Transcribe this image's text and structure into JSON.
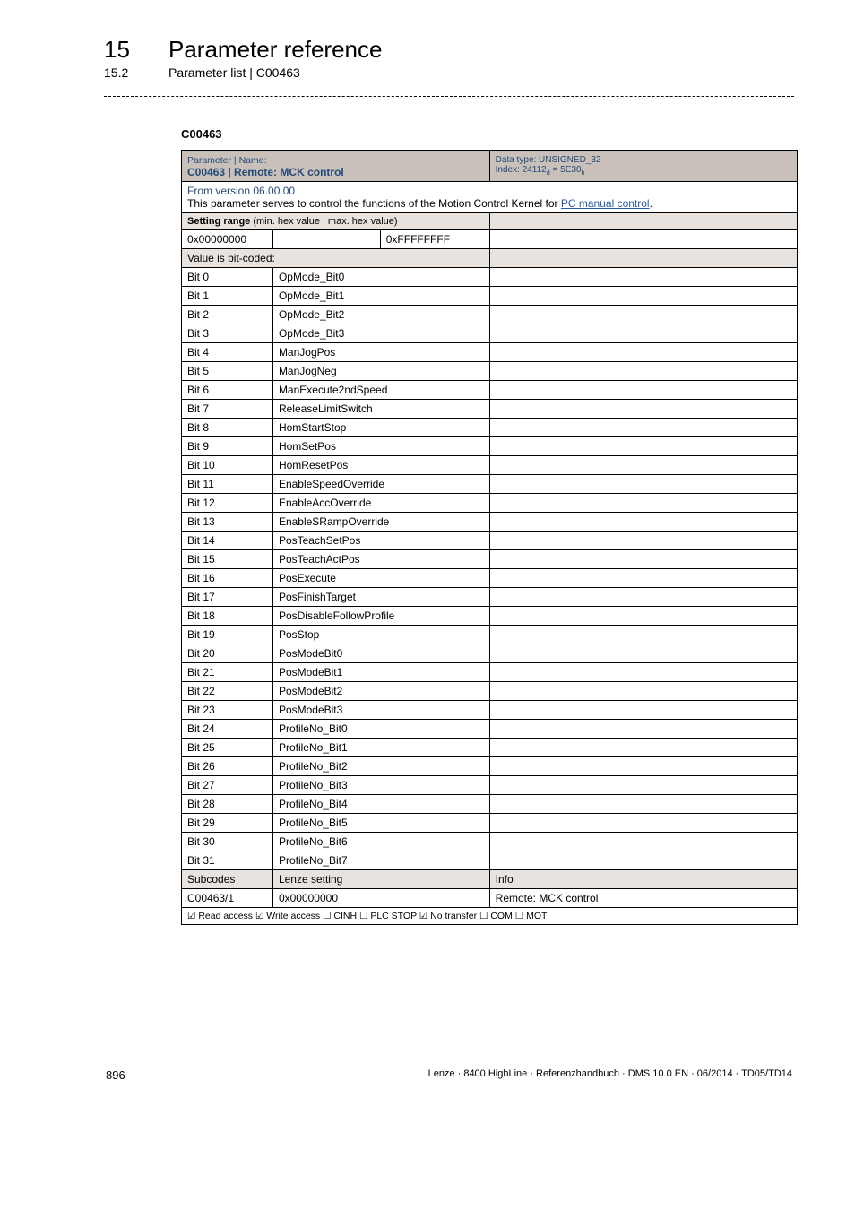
{
  "header": {
    "chapter_num": "15",
    "chapter_title": "Parameter reference",
    "section_num": "15.2",
    "section_title": "Parameter list | C00463"
  },
  "param_code": "C00463",
  "colors": {
    "header_band": "#c9c0b9",
    "gray_band": "#e8e3de",
    "link": "#2a5aa5",
    "header_text": "#244a7a"
  },
  "table": {
    "header": {
      "pn_label": "Parameter | Name:",
      "title": "C00463 | Remote: MCK control",
      "dtype": "Data type: UNSIGNED_32",
      "index": "Index: 24112",
      "index_sub1": "d",
      "index_eq": " = 5E30",
      "index_sub2": "h"
    },
    "version": "From version 06.00.00",
    "desc_pre": "This parameter serves to control the functions of the Motion Control Kernel for ",
    "desc_link": "PC manual control",
    "desc_post": ".",
    "setting_range_label": "Setting range",
    "setting_range_suffix": " (min. hex value | max. hex value)",
    "range_min": "0x00000000",
    "range_max": "0xFFFFFFFF",
    "bitcoded_label": "Value is bit-coded:",
    "bits": [
      {
        "n": "Bit 0",
        "v": "OpMode_Bit0"
      },
      {
        "n": "Bit 1",
        "v": "OpMode_Bit1"
      },
      {
        "n": "Bit 2",
        "v": "OpMode_Bit2"
      },
      {
        "n": "Bit 3",
        "v": "OpMode_Bit3"
      },
      {
        "n": "Bit 4",
        "v": "ManJogPos"
      },
      {
        "n": "Bit 5",
        "v": "ManJogNeg"
      },
      {
        "n": "Bit 6",
        "v": "ManExecute2ndSpeed"
      },
      {
        "n": "Bit 7",
        "v": "ReleaseLimitSwitch"
      },
      {
        "n": "Bit 8",
        "v": "HomStartStop"
      },
      {
        "n": "Bit 9",
        "v": "HomSetPos"
      },
      {
        "n": "Bit 10",
        "v": "HomResetPos"
      },
      {
        "n": "Bit 11",
        "v": "EnableSpeedOverride"
      },
      {
        "n": "Bit 12",
        "v": "EnableAccOverride"
      },
      {
        "n": "Bit 13",
        "v": "EnableSRampOverride"
      },
      {
        "n": "Bit 14",
        "v": "PosTeachSetPos"
      },
      {
        "n": "Bit 15",
        "v": "PosTeachActPos"
      },
      {
        "n": "Bit 16",
        "v": "PosExecute"
      },
      {
        "n": "Bit 17",
        "v": "PosFinishTarget"
      },
      {
        "n": "Bit 18",
        "v": "PosDisableFollowProfile"
      },
      {
        "n": "Bit 19",
        "v": "PosStop"
      },
      {
        "n": "Bit 20",
        "v": "PosModeBit0"
      },
      {
        "n": "Bit 21",
        "v": "PosModeBit1"
      },
      {
        "n": "Bit 22",
        "v": "PosModeBit2"
      },
      {
        "n": "Bit 23",
        "v": "PosModeBit3"
      },
      {
        "n": "Bit 24",
        "v": "ProfileNo_Bit0"
      },
      {
        "n": "Bit 25",
        "v": "ProfileNo_Bit1"
      },
      {
        "n": "Bit 26",
        "v": "ProfileNo_Bit2"
      },
      {
        "n": "Bit 27",
        "v": "ProfileNo_Bit3"
      },
      {
        "n": "Bit 28",
        "v": "ProfileNo_Bit4"
      },
      {
        "n": "Bit 29",
        "v": "ProfileNo_Bit5"
      },
      {
        "n": "Bit 30",
        "v": "ProfileNo_Bit6"
      },
      {
        "n": "Bit 31",
        "v": "ProfileNo_Bit7"
      }
    ],
    "subhead": {
      "c1": "Subcodes",
      "c2": "Lenze setting",
      "c3": "Info"
    },
    "subrow": {
      "c1": "C00463/1",
      "c2": "0x00000000",
      "c3": "Remote: MCK control"
    },
    "footrow": "☑ Read access   ☑ Write access   ☐ CINH   ☐ PLC STOP   ☑ No transfer   ☐ COM   ☐ MOT"
  },
  "footer": {
    "page": "896",
    "meta": "Lenze · 8400 HighLine · Referenzhandbuch · DMS 10.0 EN · 06/2014 · TD05/TD14"
  }
}
